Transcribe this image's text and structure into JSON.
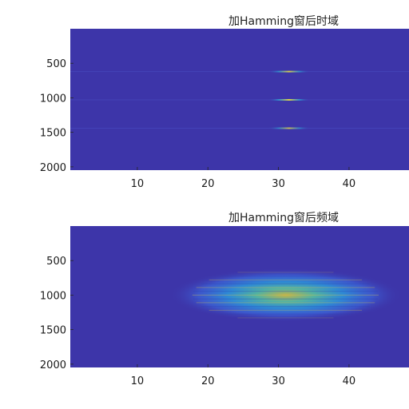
{
  "figure": {
    "background": "#ffffff"
  },
  "chart_data": [
    {
      "type": "heatmap",
      "title": "加Hamming窗后时域",
      "xlabel": "",
      "ylabel": "",
      "xlim": [
        0.5,
        48.5
      ],
      "ylim": [
        2048,
        0
      ],
      "y_reversed": true,
      "grid": false,
      "legend": "none",
      "xticks": [
        10,
        20,
        30,
        40
      ],
      "yticks": [
        500,
        1000,
        1500,
        2000
      ],
      "colormap": "parula",
      "background_color": "#3d35a9",
      "features": [
        {
          "kind": "line",
          "x_center": 31.5,
          "x_halfwidth": 3.0,
          "y": 620,
          "intensity": 0.85
        },
        {
          "kind": "line",
          "x_center": 31.5,
          "x_halfwidth": 3.0,
          "y": 1030,
          "intensity": 0.9
        },
        {
          "kind": "line",
          "x_center": 31.5,
          "x_halfwidth": 3.0,
          "y": 1440,
          "intensity": 0.75
        }
      ]
    },
    {
      "type": "heatmap",
      "title": "加Hamming窗后频域",
      "xlabel": "",
      "ylabel": "",
      "xlim": [
        0.5,
        48.5
      ],
      "ylim": [
        2048,
        0
      ],
      "y_reversed": true,
      "grid": false,
      "legend": "none",
      "xticks": [
        10,
        20,
        30,
        40
      ],
      "yticks": [
        500,
        1000,
        1500,
        2000
      ],
      "colormap": "parula",
      "background_color": "#3d35a9",
      "features": [
        {
          "kind": "blob",
          "x_center": 31.0,
          "x_sigma": 7.5,
          "y_center": 1000,
          "y_sigma": 175,
          "intensity": 0.7
        }
      ]
    }
  ]
}
